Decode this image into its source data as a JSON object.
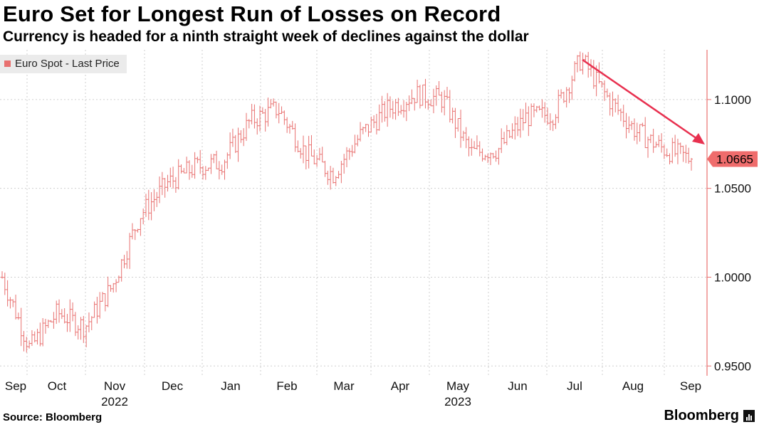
{
  "title": "Euro Set for Longest Run of Losses on Record",
  "subtitle": "Currency is headed for a ninth straight week of declines against the dollar",
  "source": "Source: Bloomberg",
  "brand": "Bloomberg",
  "colors": {
    "series": "#e8706f",
    "arrow": "#e8304f",
    "axis": "#e8706f",
    "last_label_bg": "#ef6c6c"
  },
  "chart_data": {
    "type": "line",
    "style": "ohlc-bars",
    "title": "Euro Set for Longest Run of Losses on Record",
    "subtitle": "Currency is headed for a ninth straight week of declines against the dollar",
    "series": [
      {
        "name": "Euro Spot - Last Price"
      }
    ],
    "x_ticks": [
      "Sep",
      "Oct",
      "Nov",
      "Dec",
      "Jan",
      "Feb",
      "Mar",
      "Apr",
      "May",
      "Jun",
      "Jul",
      "Aug",
      "Sep"
    ],
    "x_years": [
      {
        "year": "2022",
        "under": "Nov"
      },
      {
        "year": "2023",
        "under": "May"
      }
    ],
    "y_ticks": [
      "1.1000",
      "1.0500",
      "1.0000",
      "0.9500"
    ],
    "ylim": [
      0.9445,
      1.128
    ],
    "last_price": "1.0665",
    "annotation": "downward arrow from July high to September",
    "monthly_path": [
      {
        "month": "Sep 2022",
        "value": 1.0
      },
      {
        "month": "Sep 2022 late",
        "value": 0.96
      },
      {
        "month": "Oct 2022",
        "value": 0.98
      },
      {
        "month": "Oct 2022 mid",
        "value": 0.972
      },
      {
        "month": "Nov 2022",
        "value": 0.995
      },
      {
        "month": "Nov 2022 mid",
        "value": 1.035
      },
      {
        "month": "Dec 2022",
        "value": 1.053
      },
      {
        "month": "Dec 2022 mid",
        "value": 1.062
      },
      {
        "month": "Jan 2023",
        "value": 1.065
      },
      {
        "month": "Jan 2023 late",
        "value": 1.088
      },
      {
        "month": "Feb 2023",
        "value": 1.095
      },
      {
        "month": "Feb 2023 mid",
        "value": 1.07
      },
      {
        "month": "Mar 2023",
        "value": 1.058
      },
      {
        "month": "Mar 2023 late",
        "value": 1.08
      },
      {
        "month": "Apr 2023",
        "value": 1.095
      },
      {
        "month": "Apr 2023 late",
        "value": 1.103
      },
      {
        "month": "May 2023",
        "value": 1.1
      },
      {
        "month": "May 2023 late",
        "value": 1.07
      },
      {
        "month": "Jun 2023",
        "value": 1.072
      },
      {
        "month": "Jun 2023 mid",
        "value": 1.09
      },
      {
        "month": "Jul 2023",
        "value": 1.092
      },
      {
        "month": "Jul 2023 mid",
        "value": 1.123
      },
      {
        "month": "Aug 2023",
        "value": 1.1
      },
      {
        "month": "Aug 2023 late",
        "value": 1.082
      },
      {
        "month": "Sep 2023",
        "value": 1.072
      },
      {
        "month": "Sep 2023 last",
        "value": 1.0665
      }
    ]
  }
}
